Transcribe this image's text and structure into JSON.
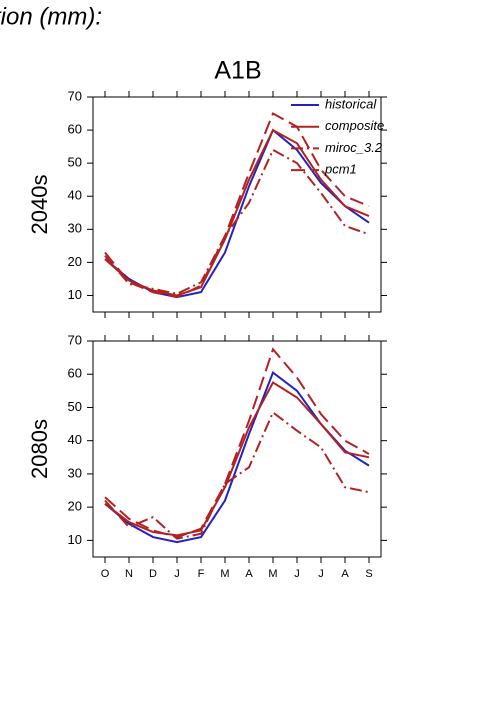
{
  "heading": "tion (mm):",
  "chart_data": [
    {
      "type": "line",
      "title": "A1B",
      "y_label": "2040s",
      "legend": "upper right",
      "categories": [
        null,
        null,
        null,
        null,
        null,
        null,
        null,
        null,
        null,
        null,
        null,
        null
      ],
      "ylim": [
        5,
        70
      ],
      "yticks": [
        10,
        20,
        30,
        40,
        50,
        60,
        70
      ],
      "series": [
        {
          "name": "historical",
          "color": "#2222c0",
          "style": "solid",
          "values": [
            21,
            15,
            11,
            9.5,
            11,
            23,
            43,
            60,
            54,
            44,
            37,
            32
          ]
        },
        {
          "name": "composite",
          "color": "#b22222",
          "style": "solid",
          "values": [
            21,
            14.5,
            11.5,
            10,
            12.5,
            27,
            45,
            60,
            56,
            45,
            37,
            34
          ]
        },
        {
          "name": "miroc_3.2",
          "color": "#b22222",
          "style": "dashdot",
          "values": [
            22,
            13.5,
            12,
            10.5,
            14,
            28,
            38,
            54,
            50,
            41,
            31,
            28.5
          ]
        },
        {
          "name": "pcm1",
          "color": "#b22222",
          "style": "dashed",
          "values": [
            23,
            14,
            11,
            9.5,
            13,
            28,
            47,
            65,
            61,
            48,
            40,
            37
          ]
        }
      ]
    },
    {
      "type": "line",
      "y_label": "2080s",
      "categories": [
        "O",
        "N",
        "D",
        "J",
        "F",
        "M",
        "A",
        "M",
        "J",
        "J",
        "A",
        "S"
      ],
      "ylim": [
        5,
        70
      ],
      "yticks": [
        10,
        20,
        30,
        40,
        50,
        60,
        70
      ],
      "series": [
        {
          "color": "#2222c0",
          "style": "solid",
          "values": [
            21,
            15,
            11,
            9.5,
            11,
            22,
            42,
            60.5,
            55,
            45,
            37,
            32.5
          ]
        },
        {
          "color": "#b22222",
          "style": "solid",
          "values": [
            21,
            15.5,
            12.5,
            11.5,
            13,
            26,
            44,
            57.5,
            53,
            45,
            36.5,
            35
          ]
        },
        {
          "color": "#b22222",
          "style": "dashdot",
          "values": [
            22,
            14,
            17,
            10.5,
            12,
            27,
            32,
            48.5,
            43,
            38,
            26,
            24.5
          ]
        },
        {
          "color": "#b22222",
          "style": "dashed",
          "values": [
            23,
            16.5,
            13,
            11,
            13.5,
            27,
            46,
            67.5,
            59,
            48,
            40,
            36
          ]
        }
      ]
    }
  ]
}
